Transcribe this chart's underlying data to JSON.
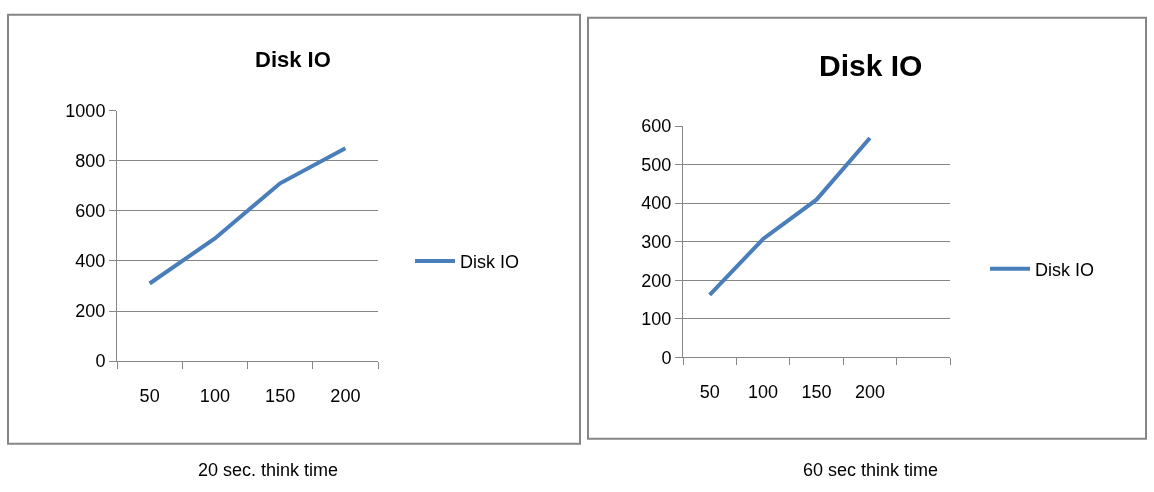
{
  "chart_data": [
    {
      "type": "line",
      "title": "Disk IO",
      "categories": [
        "50",
        "100",
        "150",
        "200"
      ],
      "series": [
        {
          "name": "Disk IO",
          "color": "#4a7ebb",
          "values": [
            310,
            490,
            710,
            850
          ]
        }
      ],
      "ylim": [
        0,
        1000
      ],
      "yticks": [
        0,
        200,
        400,
        600,
        800,
        1000
      ],
      "grid": "y",
      "legend": "right",
      "marker": "none",
      "line_style": "solid",
      "annotations": [
        "20 sec. think time"
      ]
    },
    {
      "type": "line",
      "title": "Disk IO",
      "categories": [
        "50",
        "100",
        "150",
        "200",
        null
      ],
      "series": [
        {
          "name": "Disk IO",
          "color": "#4a7ebb",
          "values": [
            162,
            307,
            409,
            569,
            null
          ]
        }
      ],
      "ylim": [
        0,
        600
      ],
      "yticks": [
        0,
        100,
        200,
        300,
        400,
        500,
        600
      ],
      "grid": "y",
      "legend": "right",
      "marker": "none",
      "line_style": "solid",
      "annotations": [
        "60 sec think time"
      ]
    }
  ]
}
